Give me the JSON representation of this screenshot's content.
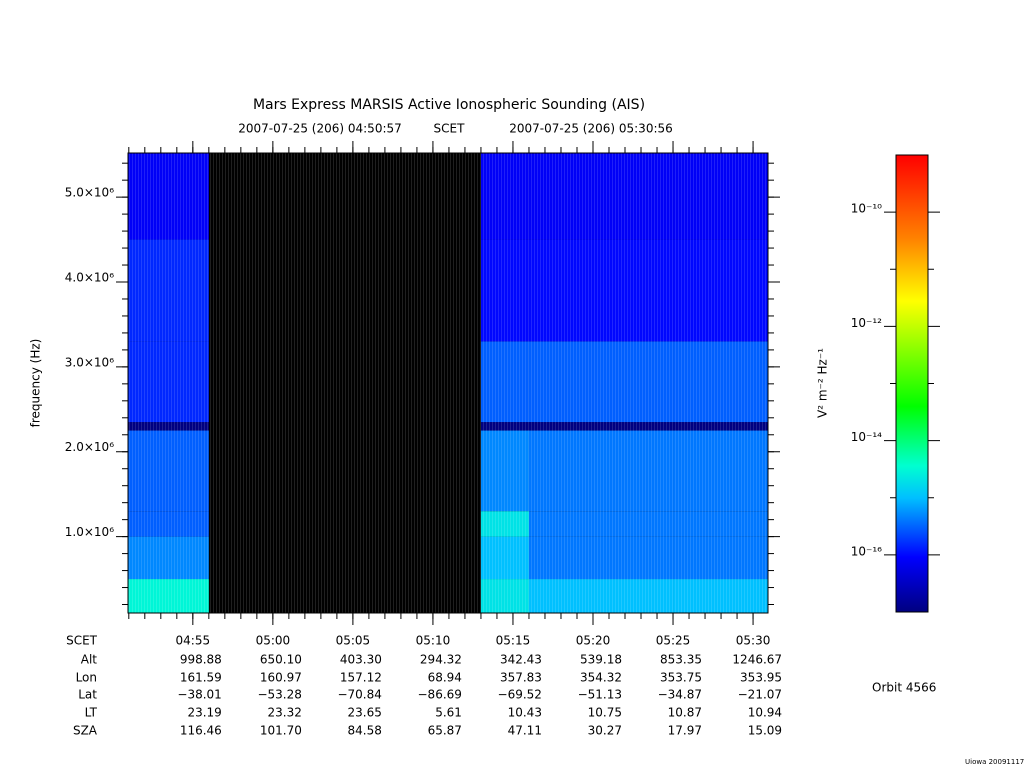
{
  "chart_data": {
    "type": "spectrogram",
    "title": "Mars Express MARSIS Active Ionospheric Sounding (AIS)",
    "subtitle": {
      "start": "2007-07-25 (206) 04:50:57",
      "reference": "SCET",
      "end": "2007-07-25 (206) 05:30:56"
    },
    "ylabel": "frequency (Hz)",
    "xlim": [
      "04:50:57",
      "05:30:56"
    ],
    "xticks": [
      "04:55",
      "05:00",
      "05:05",
      "05:10",
      "05:15",
      "05:20",
      "05:25",
      "05:30"
    ],
    "ylim": [
      100000,
      5520000
    ],
    "yticks": [
      {
        "value": 1000000,
        "label": "1.0×10⁶"
      },
      {
        "value": 2000000,
        "label": "2.0×10⁶"
      },
      {
        "value": 3000000,
        "label": "3.0×10⁶"
      },
      {
        "value": 4000000,
        "label": "4.0×10⁶"
      },
      {
        "value": 5000000,
        "label": "5.0×10⁶"
      }
    ],
    "time_edges": [
      "04:50:57",
      "04:56:00",
      "05:13:00",
      "05:16:00",
      "05:20:00",
      "05:25:00",
      "05:30:56"
    ],
    "frequency_edges": [
      100000,
      500000,
      1000000,
      1300000,
      2250000,
      2350000,
      3300000,
      4500000,
      5520000
    ],
    "values": [
      [
        3e-15,
        null,
        2e-15,
        1e-15,
        1e-15,
        1e-15
      ],
      [
        5e-16,
        null,
        1e-15,
        4e-16,
        4e-16,
        4e-16
      ],
      [
        3e-16,
        null,
        2e-15,
        4e-16,
        4e-16,
        4e-16
      ],
      [
        3e-16,
        null,
        5e-16,
        4e-16,
        4e-16,
        4e-16
      ],
      [
        1e-17,
        null,
        1e-17,
        1e-17,
        1e-17,
        1e-17
      ],
      [
        1.5e-16,
        null,
        3e-16,
        3e-16,
        3e-16,
        3e-16
      ],
      [
        1.5e-16,
        null,
        1e-16,
        1e-16,
        1e-16,
        1e-16
      ],
      [
        8e-17,
        null,
        8e-17,
        8e-17,
        8e-17,
        8e-17
      ]
    ],
    "colorbar": {
      "label": "V² m⁻² Hz⁻¹",
      "log": true,
      "zlim": [
        1e-17,
        1e-09
      ],
      "ticks": [
        {
          "value": 1e-16,
          "label": "10⁻¹⁶"
        },
        {
          "value": 1e-14,
          "label": "10⁻¹⁴"
        },
        {
          "value": 1e-12,
          "label": "10⁻¹²"
        },
        {
          "value": 1e-10,
          "label": "10⁻¹⁰"
        }
      ]
    },
    "ephemeris": {
      "time_label": "SCET",
      "rows": [
        {
          "name": "Alt",
          "values": [
            "998.88",
            "650.10",
            "403.30",
            "294.32",
            "342.43",
            "539.18",
            "853.35",
            "1246.67"
          ]
        },
        {
          "name": "Lon",
          "values": [
            "161.59",
            "160.97",
            "157.12",
            "68.94",
            "357.83",
            "354.32",
            "353.75",
            "353.95"
          ]
        },
        {
          "name": "Lat",
          "values": [
            "−38.01",
            "−53.28",
            "−70.84",
            "−86.69",
            "−69.52",
            "−51.13",
            "−34.87",
            "−21.07"
          ]
        },
        {
          "name": "LT",
          "values": [
            "23.19",
            "23.32",
            "23.65",
            "5.61",
            "10.43",
            "10.75",
            "10.87",
            "10.94"
          ]
        },
        {
          "name": "SZA",
          "values": [
            "116.46",
            "101.70",
            "84.58",
            "65.87",
            "47.11",
            "30.27",
            "17.97",
            "15.09"
          ]
        }
      ]
    },
    "orbit": "Orbit 4566",
    "credit": "Uiowa 20091117"
  }
}
